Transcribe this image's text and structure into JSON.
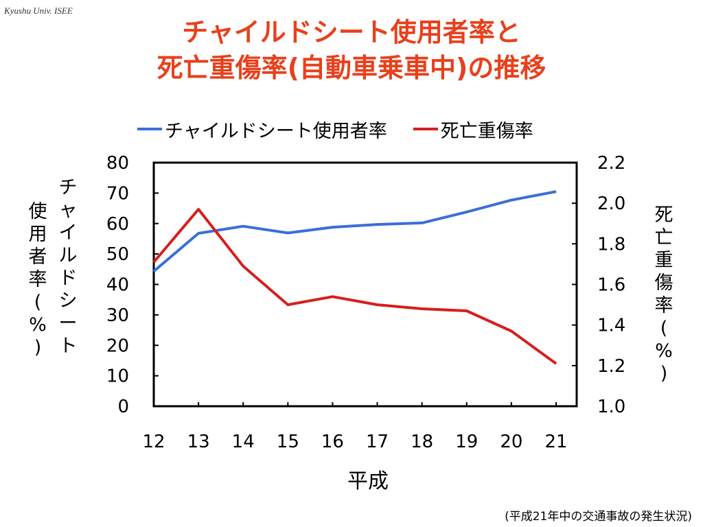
{
  "header": {
    "credit": "Kyushu Univ. ISEE",
    "title_line1": "チャイルドシート使用者率と",
    "title_line2": "死亡重傷率(自動車乗車中)の推移"
  },
  "footer": {
    "source": "(平成21年中の交通事故の発生状況)"
  },
  "chart_data": {
    "type": "line",
    "x": [
      "12",
      "13",
      "14",
      "15",
      "16",
      "17",
      "18",
      "19",
      "20",
      "21"
    ],
    "xlabel": "平成",
    "ylabel_left": [
      "チャイルドシート",
      "使用者率(%)"
    ],
    "ylabel_right": "死亡重傷率(%)",
    "ylim_left": [
      0,
      80
    ],
    "yticks_left": [
      "0",
      "10",
      "20",
      "30",
      "40",
      "50",
      "60",
      "70",
      "80"
    ],
    "ylim_right": [
      1.0,
      2.2
    ],
    "yticks_right": [
      "1.0",
      "1.2",
      "1.4",
      "1.6",
      "1.8",
      "2.0",
      "2.2"
    ],
    "grid": false,
    "legend_position": "top",
    "series": [
      {
        "name": "チャイルドシート使用者率",
        "axis": "left",
        "color": "#3b6fd8",
        "values": [
          44.3,
          56.8,
          59.1,
          56.9,
          58.8,
          59.7,
          60.2,
          63.8,
          67.7,
          70.5
        ]
      },
      {
        "name": "死亡重傷率",
        "axis": "right",
        "color": "#d41f1f",
        "values": [
          1.71,
          1.97,
          1.69,
          1.5,
          1.54,
          1.5,
          1.48,
          1.47,
          1.37,
          1.21
        ]
      }
    ]
  }
}
